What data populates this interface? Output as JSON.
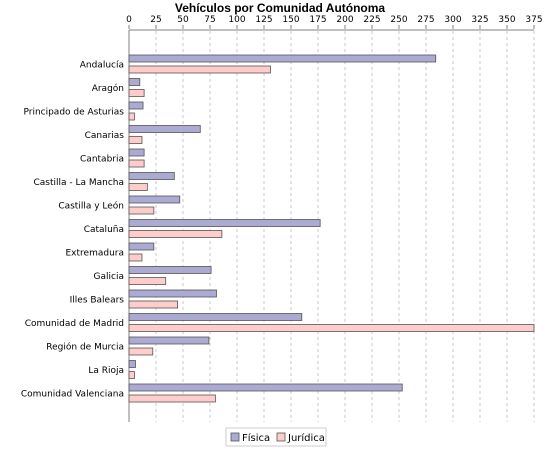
{
  "chart_data": {
    "type": "bar",
    "orientation": "horizontal",
    "title": "Vehículos por Comunidad Autónoma",
    "xlabel": "",
    "ylabel": "",
    "xlim": [
      0,
      375
    ],
    "x_ticks": [
      "0",
      "25",
      "50",
      "75",
      "100",
      "125",
      "150",
      "175",
      "200",
      "225",
      "250",
      "275",
      "300",
      "325",
      "350",
      "375"
    ],
    "axis_position": "top",
    "grid": true,
    "legend_position": "bottom",
    "categories": [
      "Andalucía",
      "Aragón",
      "Principado de Asturias",
      "Canarias",
      "Cantabria",
      "Castilla - La Mancha",
      "Castilla y León",
      "Cataluña",
      "Extremadura",
      "Galicia",
      "Illes Balears",
      "Comunidad de Madrid",
      "Región de Murcia",
      "La Rioja",
      "Comunidad Valenciana"
    ],
    "series": [
      {
        "name": "Física",
        "color": "#aaaad2",
        "values": [
          284,
          10,
          13,
          66,
          14,
          42,
          47,
          177,
          23,
          76,
          81,
          160,
          74,
          6,
          253
        ]
      },
      {
        "name": "Jurídica",
        "color": "#ffcccc",
        "values": [
          131,
          14,
          5,
          12,
          14,
          17,
          23,
          86,
          12,
          34,
          45,
          375,
          22,
          5,
          80
        ]
      }
    ]
  }
}
